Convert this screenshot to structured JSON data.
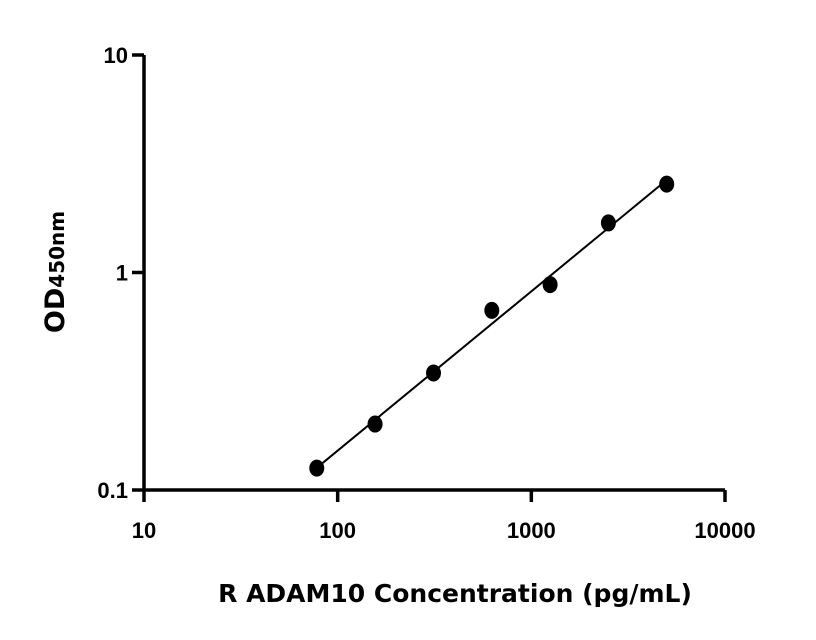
{
  "chart_data": {
    "type": "scatter",
    "title": "",
    "xlabel": "R ADAM10 Concentration (pg/mL)",
    "ylabel_main": "OD",
    "ylabel_sub": "450nm",
    "xscale": "log",
    "yscale": "log",
    "xlim": [
      10,
      10000
    ],
    "ylim": [
      0.1,
      10
    ],
    "xticks": [
      "10",
      "100",
      "1000",
      "10000"
    ],
    "yticks": [
      "0.1",
      "1",
      "10"
    ],
    "grid": false,
    "fit_line": true,
    "marker_color": "#000000",
    "x": [
      78,
      156,
      312.5,
      625,
      1250,
      2500,
      5000
    ],
    "y": [
      0.126,
      0.201,
      0.345,
      0.67,
      0.88,
      1.69,
      2.55
    ]
  }
}
